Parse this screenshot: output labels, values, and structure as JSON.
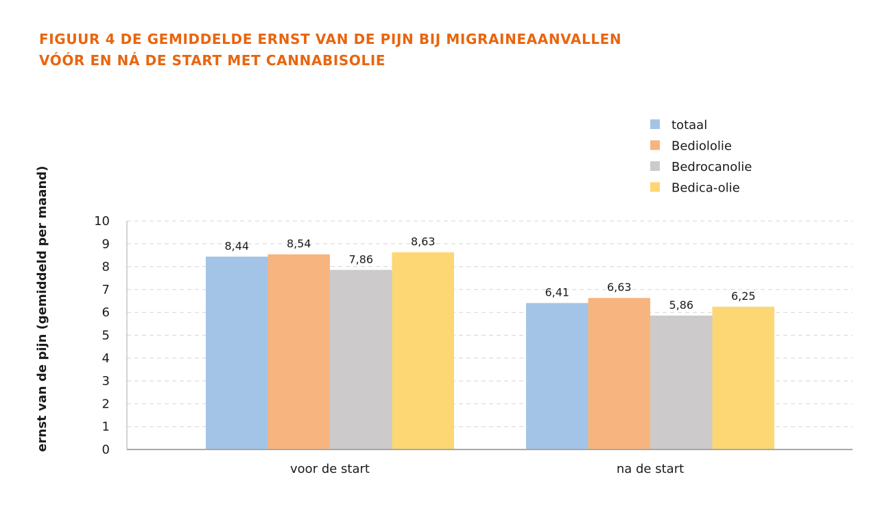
{
  "title": {
    "line1": "FIGUUR 4  DE GEMIDDELDE ERNST VAN DE PIJN BIJ MIGRAINEAANVALLEN",
    "line2": "VÓÓR EN NÁ DE START MET CANNABISOLIE"
  },
  "chart_data": {
    "type": "bar",
    "title": "FIGUUR 4  DE GEMIDDELDE ERNST VAN DE PIJN BIJ MIGRAINEAANVALLEN VÓÓR EN NÁ DE START MET CANNABISOLIE",
    "xlabel": "",
    "ylabel": "ernst van de pijn (gemiddeld per maand)",
    "categories": [
      "voor de start",
      "na de start"
    ],
    "series": [
      {
        "name": "totaal",
        "values": [
          8.44,
          6.41
        ],
        "labels": [
          "8,44",
          "6,41"
        ],
        "color": "#A3C4E6"
      },
      {
        "name": "Bediololie",
        "values": [
          8.54,
          6.63
        ],
        "labels": [
          "8,54",
          "6,63"
        ],
        "color": "#F7B47E"
      },
      {
        "name": "Bedrocanolie",
        "values": [
          7.86,
          5.86
        ],
        "labels": [
          "7,86",
          "5,86"
        ],
        "color": "#CCCACA"
      },
      {
        "name": "Bedica-olie",
        "values": [
          8.63,
          6.25
        ],
        "labels": [
          "8,63",
          "6,25"
        ],
        "color": "#FDD774"
      }
    ],
    "ylim": [
      0,
      10
    ],
    "yticks": [
      "0",
      "1",
      "2",
      "3",
      "4",
      "5",
      "6",
      "7",
      "8",
      "9",
      "10"
    ],
    "grid": true,
    "legend": "top-right"
  }
}
